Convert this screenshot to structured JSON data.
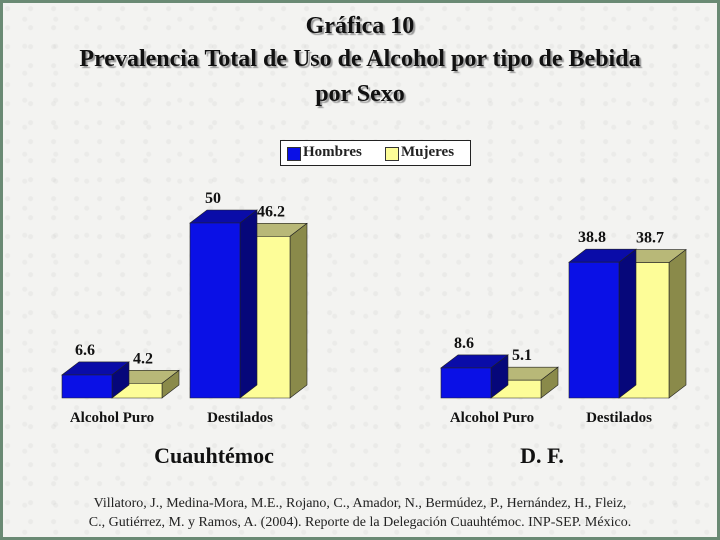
{
  "title": {
    "line1": "Gráfica 10",
    "line2": "Prevalencia Total de Uso de Alcohol por tipo de Bebida",
    "line3": "por Sexo"
  },
  "legend": [
    {
      "label": "Hombres",
      "color": "#0a10e6"
    },
    {
      "label": "Mujeres",
      "color": "#fdfd98"
    }
  ],
  "groups": [
    "Cuauhtémoc",
    "D. F."
  ],
  "categories": [
    "Alcohol Puro",
    "Destilados"
  ],
  "source": {
    "line1": "Villatoro, J., Medina-Mora, M.E., Rojano, C., Amador, N., Bermúdez, P., Hernández, H., Fleiz,",
    "line2": "C., Gutiérrez, M. y Ramos, A. (2004). Reporte de la Delegación Cuauhtémoc. INP-SEP. México."
  },
  "chart_data": [
    {
      "type": "bar",
      "group": "Cuauhtémoc",
      "categories": [
        "Alcohol Puro",
        "Destilados"
      ],
      "series": [
        {
          "name": "Hombres",
          "values": [
            6.6,
            50
          ]
        },
        {
          "name": "Mujeres",
          "values": [
            4.2,
            46.2
          ]
        }
      ],
      "ylim": [
        0,
        50
      ]
    },
    {
      "type": "bar",
      "group": "D. F.",
      "categories": [
        "Alcohol Puro",
        "Destilados"
      ],
      "series": [
        {
          "name": "Hombres",
          "values": [
            8.6,
            38.8
          ]
        },
        {
          "name": "Mujeres",
          "values": [
            5.1,
            38.7
          ]
        }
      ],
      "ylim": [
        0,
        50
      ]
    }
  ]
}
